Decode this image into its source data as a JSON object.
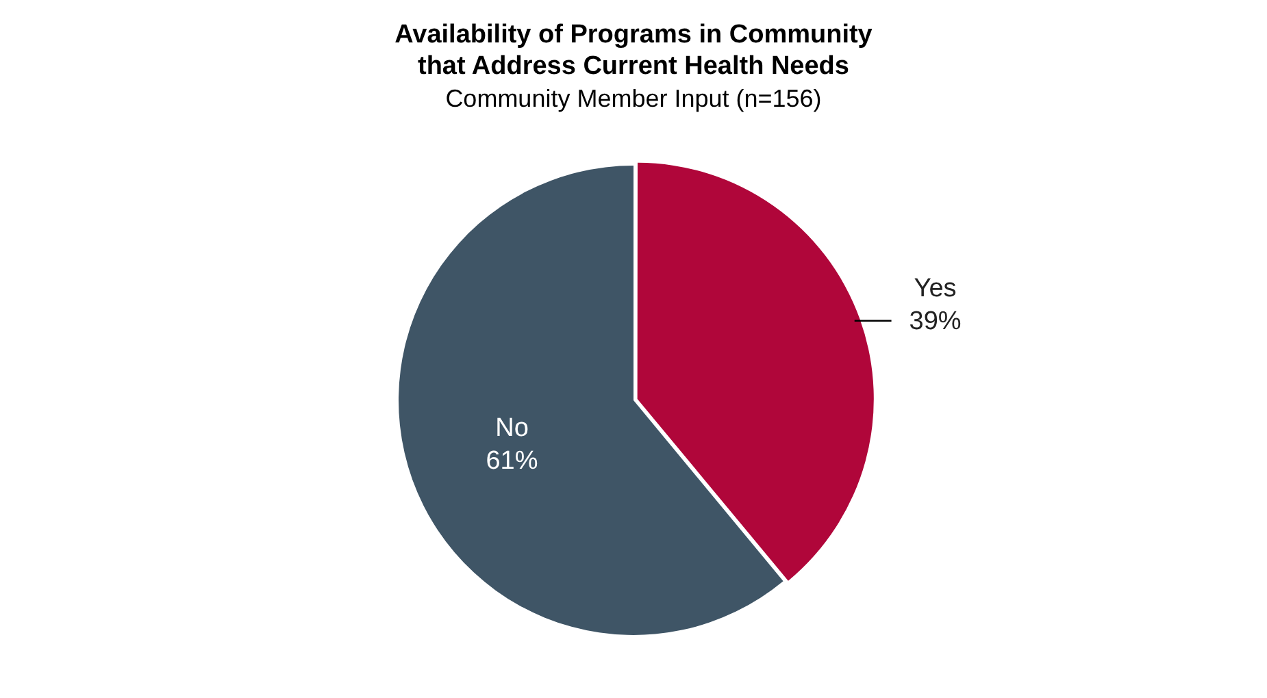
{
  "chart_data": {
    "type": "pie",
    "title": "Availability of Programs in Community that Address Current Health Needs",
    "subtitle": "Community Member Input (n=156)",
    "categories": [
      "Yes",
      "No"
    ],
    "values": [
      39,
      61
    ],
    "colors": [
      "#b0063a",
      "#3f5566"
    ],
    "value_labels": [
      "39%",
      "61%"
    ],
    "legend": false
  }
}
